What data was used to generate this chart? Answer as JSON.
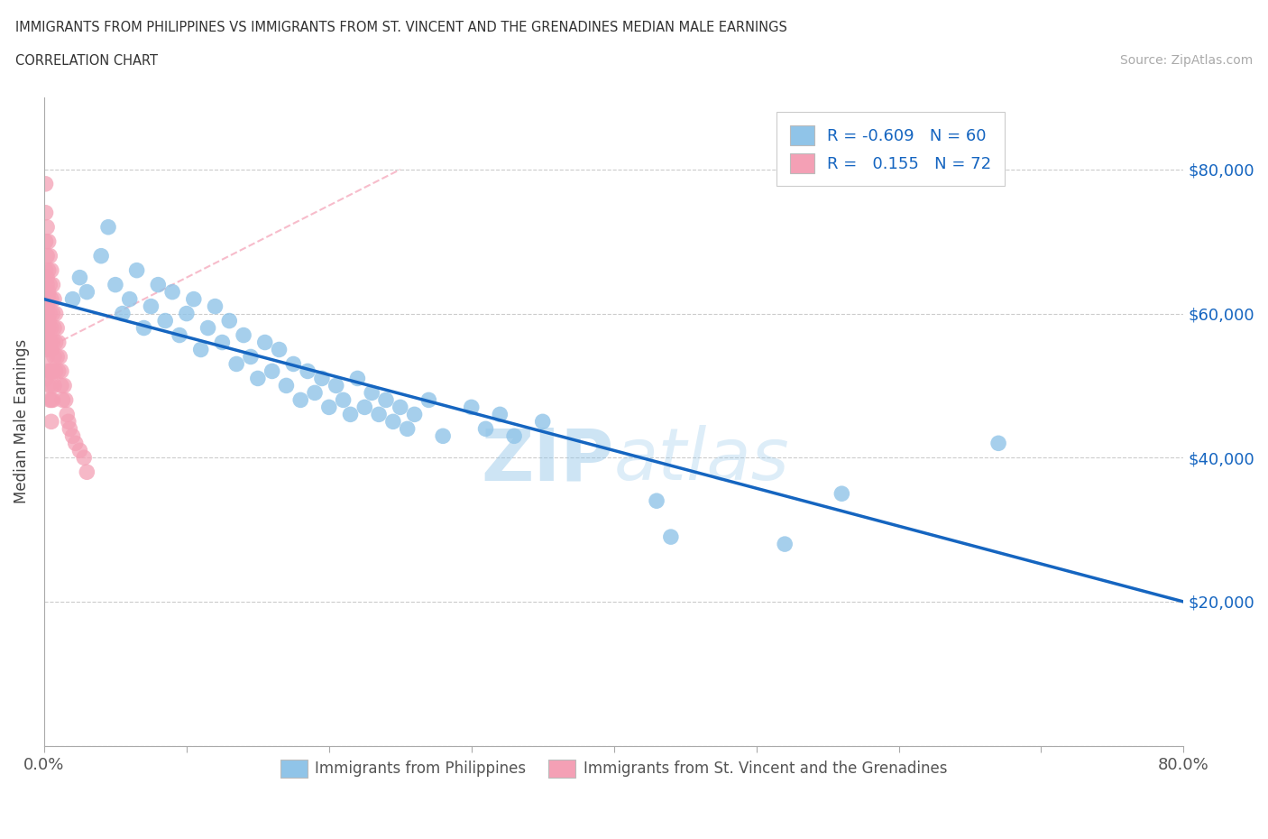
{
  "title_line1": "IMMIGRANTS FROM PHILIPPINES VS IMMIGRANTS FROM ST. VINCENT AND THE GRENADINES MEDIAN MALE EARNINGS",
  "title_line2": "CORRELATION CHART",
  "source_text": "Source: ZipAtlas.com",
  "ylabel": "Median Male Earnings",
  "x_min": 0.0,
  "x_max": 0.8,
  "y_min": 0,
  "y_max": 90000,
  "x_ticks": [
    0.0,
    0.1,
    0.2,
    0.3,
    0.4,
    0.5,
    0.6,
    0.7,
    0.8
  ],
  "y_ticks": [
    0,
    20000,
    40000,
    60000,
    80000
  ],
  "watermark_part1": "ZIP",
  "watermark_part2": "atlas",
  "blue_color": "#90c4e8",
  "blue_line_color": "#1565C0",
  "pink_color": "#f4a0b5",
  "pink_diag_color": "#f4a0b5",
  "r_blue": -0.609,
  "n_blue": 60,
  "r_pink": 0.155,
  "n_pink": 72,
  "legend_label_blue": "Immigrants from Philippines",
  "legend_label_pink": "Immigrants from St. Vincent and the Grenadines",
  "blue_line_x0": 0.0,
  "blue_line_y0": 62000,
  "blue_line_x1": 0.8,
  "blue_line_y1": 20000,
  "blue_scatter_x": [
    0.02,
    0.025,
    0.03,
    0.04,
    0.045,
    0.05,
    0.055,
    0.06,
    0.065,
    0.07,
    0.075,
    0.08,
    0.085,
    0.09,
    0.095,
    0.1,
    0.105,
    0.11,
    0.115,
    0.12,
    0.125,
    0.13,
    0.135,
    0.14,
    0.145,
    0.15,
    0.155,
    0.16,
    0.165,
    0.17,
    0.175,
    0.18,
    0.185,
    0.19,
    0.195,
    0.2,
    0.205,
    0.21,
    0.215,
    0.22,
    0.225,
    0.23,
    0.235,
    0.24,
    0.245,
    0.25,
    0.255,
    0.26,
    0.27,
    0.28,
    0.3,
    0.31,
    0.32,
    0.33,
    0.35,
    0.43,
    0.44,
    0.52,
    0.56,
    0.67
  ],
  "blue_scatter_y": [
    62000,
    65000,
    63000,
    68000,
    72000,
    64000,
    60000,
    62000,
    66000,
    58000,
    61000,
    64000,
    59000,
    63000,
    57000,
    60000,
    62000,
    55000,
    58000,
    61000,
    56000,
    59000,
    53000,
    57000,
    54000,
    51000,
    56000,
    52000,
    55000,
    50000,
    53000,
    48000,
    52000,
    49000,
    51000,
    47000,
    50000,
    48000,
    46000,
    51000,
    47000,
    49000,
    46000,
    48000,
    45000,
    47000,
    44000,
    46000,
    48000,
    43000,
    47000,
    44000,
    46000,
    43000,
    45000,
    34000,
    29000,
    28000,
    35000,
    42000
  ],
  "pink_scatter_x": [
    0.001,
    0.001,
    0.001,
    0.001,
    0.002,
    0.002,
    0.002,
    0.002,
    0.002,
    0.002,
    0.002,
    0.003,
    0.003,
    0.003,
    0.003,
    0.003,
    0.003,
    0.003,
    0.004,
    0.004,
    0.004,
    0.004,
    0.004,
    0.004,
    0.005,
    0.005,
    0.005,
    0.005,
    0.005,
    0.005,
    0.005,
    0.005,
    0.006,
    0.006,
    0.006,
    0.006,
    0.006,
    0.007,
    0.007,
    0.007,
    0.007,
    0.008,
    0.008,
    0.008,
    0.009,
    0.009,
    0.01,
    0.01,
    0.011,
    0.012,
    0.012,
    0.013,
    0.014,
    0.015,
    0.016,
    0.017,
    0.018,
    0.02,
    0.022,
    0.025,
    0.028,
    0.03,
    0.001,
    0.001,
    0.001,
    0.001,
    0.002,
    0.002,
    0.002,
    0.003,
    0.003,
    0.004
  ],
  "pink_scatter_y": [
    78000,
    74000,
    70000,
    66000,
    72000,
    68000,
    64000,
    60000,
    58000,
    56000,
    54000,
    70000,
    66000,
    62000,
    58000,
    56000,
    52000,
    50000,
    68000,
    64000,
    60000,
    56000,
    52000,
    48000,
    66000,
    62000,
    58000,
    55000,
    52000,
    50000,
    48000,
    45000,
    64000,
    60000,
    56000,
    52000,
    48000,
    62000,
    58000,
    54000,
    50000,
    60000,
    56000,
    52000,
    58000,
    54000,
    56000,
    52000,
    54000,
    52000,
    50000,
    48000,
    50000,
    48000,
    46000,
    45000,
    44000,
    43000,
    42000,
    41000,
    40000,
    38000,
    62000,
    59000,
    55000,
    51000,
    65000,
    61000,
    57000,
    63000,
    59000,
    56000
  ]
}
